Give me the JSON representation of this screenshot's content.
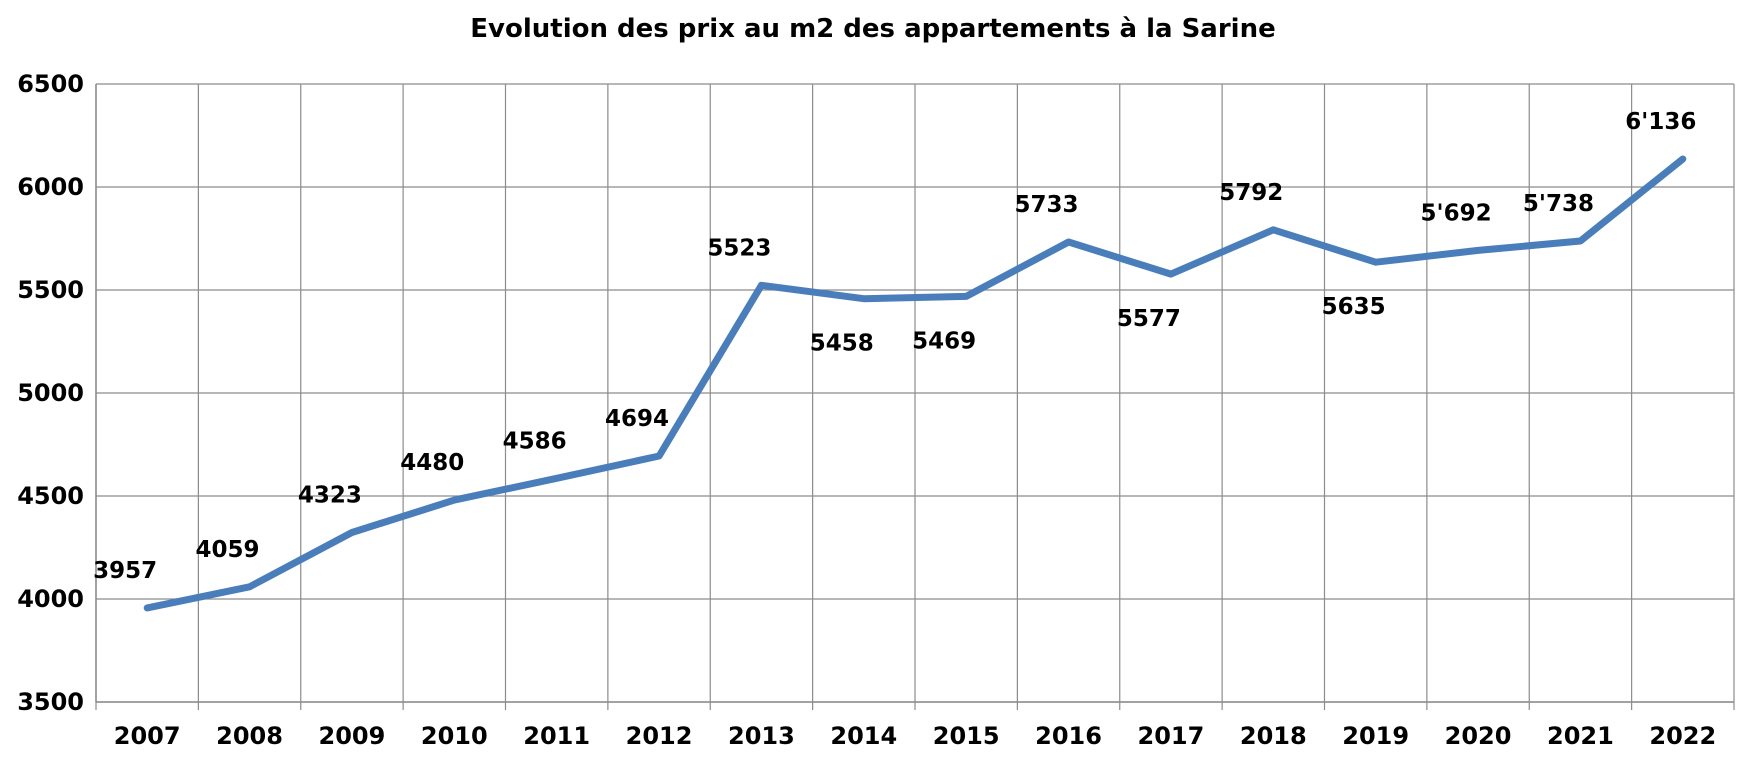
{
  "chart_data": {
    "type": "line",
    "title": "Evolution des prix au m2 des appartements à la Sarine",
    "xlabel": "",
    "ylabel": "",
    "categories": [
      "2007",
      "2008",
      "2009",
      "2010",
      "2011",
      "2012",
      "2013",
      "2014",
      "2015",
      "2016",
      "2017",
      "2018",
      "2019",
      "2020",
      "2021",
      "2022"
    ],
    "series": [
      {
        "name": "Prix au m2",
        "color": "#4a7ebb",
        "values": [
          3957,
          4059,
          4323,
          4480,
          4586,
          4694,
          5523,
          5458,
          5469,
          5733,
          5577,
          5792,
          5635,
          5692,
          5738,
          6136
        ],
        "labels": [
          "3957",
          "4059",
          "4323",
          "4480",
          "4586",
          "4694",
          "5523",
          "5458",
          "5469",
          "5733",
          "5577",
          "5792",
          "5635",
          "5'692",
          "5'738",
          "6'136"
        ],
        "label_positions": [
          "above",
          "above",
          "above",
          "above",
          "above",
          "above",
          "above",
          "below",
          "below",
          "above",
          "below",
          "above",
          "below",
          "above",
          "above",
          "above"
        ]
      }
    ],
    "ylim": [
      3500,
      6500
    ],
    "yticks": [
      3500,
      4000,
      4500,
      5000,
      5500,
      6000,
      6500
    ],
    "ytick_labels": [
      "3500",
      "4000",
      "4500",
      "5000",
      "5500",
      "6000",
      "6500"
    ],
    "grid": true,
    "legend": "none"
  }
}
